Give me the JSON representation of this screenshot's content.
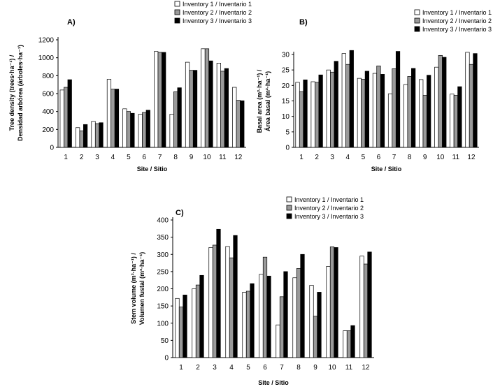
{
  "colors": {
    "inv1": "#ffffff",
    "inv2": "#9a9a9a",
    "inv3": "#000000"
  },
  "legend": [
    "Inventory 1 / Inventario 1",
    "Inventory 2 / Inventario 2",
    "Inventory 3 / Inventario 3"
  ],
  "chart_data": [
    {
      "panel": "A)",
      "type": "bar",
      "title": "",
      "ylabel_lines": [
        "Tree density (trees·ha⁻¹) /",
        "Densidad arbórea (árboles·ha⁻¹)"
      ],
      "xlabel": "Site / Sitio",
      "categories": [
        "1",
        "2",
        "3",
        "4",
        "5",
        "6",
        "7",
        "8",
        "9",
        "10",
        "11",
        "12"
      ],
      "ylim": [
        0,
        1200
      ],
      "yticks": [
        0,
        200,
        400,
        600,
        800,
        1000,
        1200
      ],
      "legend_position": "top-right",
      "series": [
        {
          "name": "Inventory 1 / Inventario 1",
          "values": [
            640,
            220,
            290,
            760,
            430,
            370,
            1070,
            370,
            950,
            1100,
            940,
            670
          ]
        },
        {
          "name": "Inventory 2 / Inventario 2",
          "values": [
            670,
            185,
            265,
            650,
            400,
            390,
            1060,
            620,
            860,
            1100,
            850,
            525
          ]
        },
        {
          "name": "Inventory 3 / Inventario 3",
          "values": [
            755,
            255,
            275,
            650,
            380,
            415,
            1060,
            665,
            860,
            965,
            880,
            520
          ]
        }
      ]
    },
    {
      "panel": "B)",
      "type": "bar",
      "title": "",
      "ylabel_lines": [
        "Basal area (m²·ha⁻¹) /",
        "Área basal (m²·ha⁻¹)"
      ],
      "xlabel": "Site / Sitio",
      "categories": [
        "1",
        "2",
        "3",
        "4",
        "5",
        "6",
        "7",
        "8",
        "9",
        "10",
        "11",
        "12"
      ],
      "ylim": [
        0,
        30
      ],
      "yticks": [
        0,
        5,
        10,
        15,
        20,
        25,
        30
      ],
      "legend_position": "top-right",
      "series": [
        {
          "name": "Inventory 1 / Inventario 1",
          "values": [
            21,
            21.2,
            25,
            30.3,
            22.3,
            23.9,
            17.3,
            20.3,
            21.9,
            25.9,
            17.2,
            30.7
          ]
        },
        {
          "name": "Inventory 2 / Inventario 2",
          "values": [
            18,
            21,
            24.3,
            26.8,
            22,
            26.3,
            25.4,
            22.9,
            16.8,
            29.7,
            16.8,
            26.8
          ]
        },
        {
          "name": "Inventory 3 / Inventario 3",
          "values": [
            21.8,
            23.4,
            27.8,
            31.3,
            24.6,
            23.6,
            31,
            25.5,
            23.3,
            29.1,
            19.6,
            30.3
          ]
        }
      ]
    },
    {
      "panel": "C)",
      "type": "bar",
      "title": "",
      "ylabel_lines": [
        "Stem volume (m³·ha⁻¹) /",
        "Volumen fustal (m³·ha⁻¹)"
      ],
      "xlabel": "Site / Sitio",
      "categories": [
        "1",
        "2",
        "3",
        "4",
        "5",
        "6",
        "7",
        "8",
        "9",
        "10",
        "11",
        "12"
      ],
      "ylim": [
        0,
        400
      ],
      "yticks": [
        0,
        50,
        100,
        150,
        200,
        250,
        300,
        350,
        400
      ],
      "legend_position": "top-right",
      "series": [
        {
          "name": "Inventory 1 / Inventario 1",
          "values": [
            172,
            200,
            320,
            323,
            190,
            242,
            95,
            232,
            210,
            265,
            78,
            295
          ]
        },
        {
          "name": "Inventory 2 / Inventario 2",
          "values": [
            147,
            211,
            327,
            290,
            193,
            292,
            177,
            259,
            120,
            322,
            78,
            272
          ]
        },
        {
          "name": "Inventory 3 / Inventario 3",
          "values": [
            182,
            239,
            373,
            355,
            215,
            237,
            250,
            300,
            190,
            320,
            93,
            307
          ]
        }
      ]
    }
  ]
}
